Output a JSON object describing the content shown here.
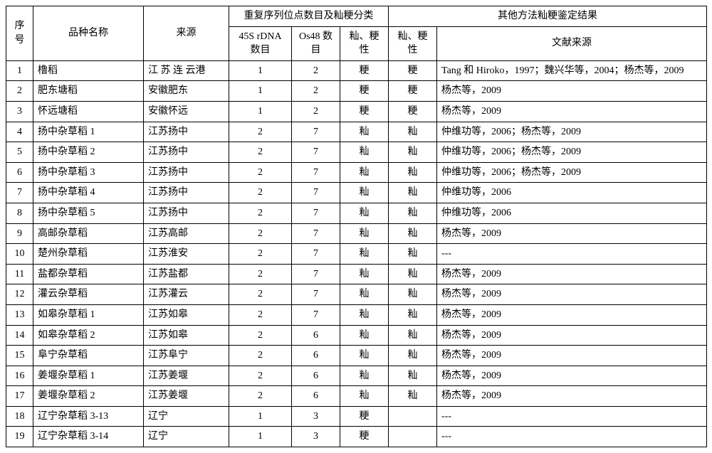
{
  "header": {
    "seq": "序号",
    "name": "品种名称",
    "src": "来源",
    "group1": "重复序列位点数目及籼粳分类",
    "group2": "其他方法籼粳鉴定结果",
    "col45s": "45S rDNA 数目",
    "colOs48": "Os48 数目",
    "colXJ1": "籼、粳性",
    "colXJ2": "籼、粳性",
    "colRef": "文献来源"
  },
  "rows": [
    {
      "seq": "1",
      "name": "橹稻",
      "src": "江 苏 连 云港",
      "v45": "1",
      "os48": "2",
      "xj1": "粳",
      "xj2": "粳",
      "ref": "Tang 和 Hiroko，1997；魏兴华等，2004；杨杰等，2009"
    },
    {
      "seq": "2",
      "name": "肥东塘稻",
      "src": "安徽肥东",
      "v45": "1",
      "os48": "2",
      "xj1": "粳",
      "xj2": "粳",
      "ref": "杨杰等，2009"
    },
    {
      "seq": "3",
      "name": "怀远塘稻",
      "src": "安徽怀远",
      "v45": "1",
      "os48": "2",
      "xj1": "粳",
      "xj2": "粳",
      "ref": "杨杰等，2009"
    },
    {
      "seq": "4",
      "name": "扬中杂草稻 1",
      "src": "江苏扬中",
      "v45": "2",
      "os48": "7",
      "xj1": "籼",
      "xj2": "籼",
      "ref": "仲维功等，2006；杨杰等，2009"
    },
    {
      "seq": "5",
      "name": "扬中杂草稻 2",
      "src": "江苏扬中",
      "v45": "2",
      "os48": "7",
      "xj1": "籼",
      "xj2": "籼",
      "ref": "仲维功等，2006；杨杰等，2009"
    },
    {
      "seq": "6",
      "name": "扬中杂草稻 3",
      "src": "江苏扬中",
      "v45": "2",
      "os48": "7",
      "xj1": "籼",
      "xj2": "籼",
      "ref": "仲维功等，2006；杨杰等，2009"
    },
    {
      "seq": "7",
      "name": "扬中杂草稻 4",
      "src": "江苏扬中",
      "v45": "2",
      "os48": "7",
      "xj1": "籼",
      "xj2": "籼",
      "ref": "仲维功等，2006"
    },
    {
      "seq": "8",
      "name": "扬中杂草稻 5",
      "src": "江苏扬中",
      "v45": "2",
      "os48": "7",
      "xj1": "籼",
      "xj2": "籼",
      "ref": "仲维功等，2006"
    },
    {
      "seq": "9",
      "name": "高邮杂草稻",
      "src": "江苏高邮",
      "v45": "2",
      "os48": "7",
      "xj1": "籼",
      "xj2": "籼",
      "ref": "杨杰等，2009"
    },
    {
      "seq": "10",
      "name": "楚州杂草稻",
      "src": "江苏淮安",
      "v45": "2",
      "os48": "7",
      "xj1": "籼",
      "xj2": "籼",
      "ref": "---"
    },
    {
      "seq": "11",
      "name": "盐都杂草稻",
      "src": "江苏盐都",
      "v45": "2",
      "os48": "7",
      "xj1": "籼",
      "xj2": "籼",
      "ref": "杨杰等，2009"
    },
    {
      "seq": "12",
      "name": "灌云杂草稻",
      "src": "江苏灌云",
      "v45": "2",
      "os48": "7",
      "xj1": "籼",
      "xj2": "籼",
      "ref": "杨杰等，2009"
    },
    {
      "seq": "13",
      "name": "如皋杂草稻 1",
      "src": "江苏如皋",
      "v45": "2",
      "os48": "7",
      "xj1": "籼",
      "xj2": "籼",
      "ref": "杨杰等，2009"
    },
    {
      "seq": "14",
      "name": "如皋杂草稻 2",
      "src": "江苏如皋",
      "v45": "2",
      "os48": "6",
      "xj1": "籼",
      "xj2": "籼",
      "ref": "杨杰等，2009"
    },
    {
      "seq": "15",
      "name": "阜宁杂草稻",
      "src": "江苏阜宁",
      "v45": "2",
      "os48": "6",
      "xj1": "籼",
      "xj2": "籼",
      "ref": "杨杰等，2009"
    },
    {
      "seq": "16",
      "name": "姜堰杂草稻 1",
      "src": "江苏姜堰",
      "v45": "2",
      "os48": "6",
      "xj1": "籼",
      "xj2": "籼",
      "ref": "杨杰等，2009"
    },
    {
      "seq": "17",
      "name": "姜堰杂草稻 2",
      "src": "江苏姜堰",
      "v45": "2",
      "os48": "6",
      "xj1": "籼",
      "xj2": "籼",
      "ref": "杨杰等，2009"
    },
    {
      "seq": "18",
      "name": "辽宁杂草稻 3-13",
      "src": "辽宁",
      "v45": "1",
      "os48": "3",
      "xj1": "粳",
      "xj2": "",
      "ref": "---"
    },
    {
      "seq": "19",
      "name": "辽宁杂草稻 3-14",
      "src": "辽宁",
      "v45": "1",
      "os48": "3",
      "xj1": "粳",
      "xj2": "",
      "ref": "---"
    }
  ]
}
